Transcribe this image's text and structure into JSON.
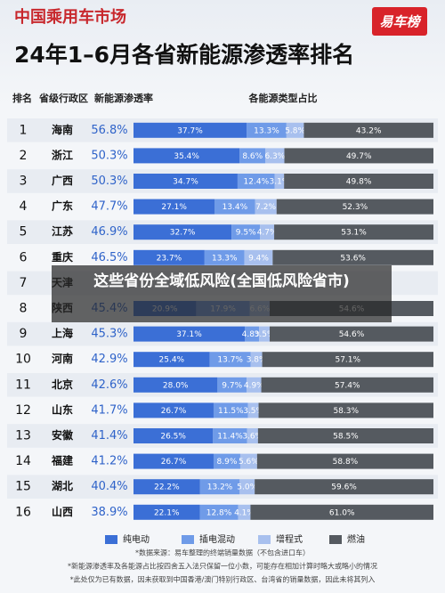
{
  "header": {
    "title": "中国乘用车市场",
    "logo": "易车榜",
    "headline": "24年1–6月各省新能源渗透率排名"
  },
  "overlay_caption": "这些省份全域低风险(全国低风险省市)",
  "chart_data": {
    "type": "bar",
    "stacked": true,
    "orientation": "horizontal",
    "column_headers": [
      "排名",
      "省级行政区",
      "新能源渗透率",
      "各能源类型占比"
    ],
    "ranks": [
      1,
      2,
      3,
      4,
      5,
      6,
      7,
      8,
      9,
      10,
      11,
      12,
      13,
      14,
      15,
      16
    ],
    "categories": [
      "海南",
      "浙江",
      "广西",
      "广东",
      "江苏",
      "重庆",
      "天津",
      "陕西",
      "上海",
      "河南",
      "北京",
      "山东",
      "安徽",
      "福建",
      "湖北",
      "山西"
    ],
    "penetration": [
      56.8,
      50.3,
      50.3,
      47.7,
      46.9,
      46.5,
      null,
      45.4,
      45.3,
      42.9,
      42.6,
      41.7,
      41.4,
      41.2,
      40.4,
      38.9
    ],
    "penetration_labels": [
      "56.8%",
      "50.3%",
      "50.3%",
      "47.7%",
      "46.9%",
      "46.5%",
      null,
      "45.4%",
      "45.3%",
      "42.9%",
      "42.6%",
      "41.7%",
      "41.4%",
      "41.2%",
      "40.4%",
      "38.9%"
    ],
    "xlim": [
      0,
      100
    ],
    "series": [
      {
        "name": "纯电动",
        "color": "#3b6fd6",
        "values": [
          37.7,
          35.4,
          34.7,
          27.1,
          32.7,
          23.7,
          null,
          20.9,
          37.1,
          25.4,
          28.0,
          26.7,
          26.5,
          26.7,
          22.2,
          22.1
        ],
        "value_labels": [
          "37.7%",
          "35.4%",
          "34.7%",
          "27.1%",
          "32.7%",
          "23.7%",
          null,
          "20.9%",
          "37.1%",
          "25.4%",
          "28.0%",
          "26.7%",
          "26.5%",
          "26.7%",
          "22.2%",
          "22.1%"
        ]
      },
      {
        "name": "插电混动",
        "color": "#6f9be8",
        "values": [
          13.3,
          8.6,
          12.4,
          13.4,
          9.5,
          13.3,
          null,
          17.9,
          4.8,
          13.7,
          9.7,
          11.5,
          11.4,
          8.9,
          13.2,
          12.8
        ],
        "value_labels": [
          "13.3%",
          "8.6%",
          "12.4%",
          "13.4%",
          "9.5%",
          "13.3%",
          null,
          "17.9%",
          "4.8%",
          "13.7%",
          "9.7%",
          "11.5%",
          "11.4%",
          "8.9%",
          "13.2%",
          "12.8%"
        ]
      },
      {
        "name": "增程式",
        "color": "#a8c0ee",
        "values": [
          5.8,
          6.3,
          3.1,
          7.2,
          4.7,
          9.4,
          null,
          6.6,
          3.5,
          3.8,
          4.9,
          3.5,
          3.6,
          5.6,
          5.0,
          4.1
        ],
        "value_labels": [
          "5.8%",
          "6.3%",
          "3.1%",
          "7.2%",
          "4.7%",
          "9.4%",
          null,
          "6.6%",
          "3.5%",
          "3.8%",
          "4.9%",
          "3.5%",
          "3.6%",
          "5.6%",
          "5.0%",
          "4.1%"
        ]
      },
      {
        "name": "燃油",
        "color": "#555a60",
        "values": [
          43.2,
          49.7,
          49.8,
          52.3,
          53.1,
          53.6,
          null,
          54.6,
          54.6,
          57.1,
          57.4,
          58.3,
          58.5,
          58.8,
          59.6,
          61.0
        ],
        "value_labels": [
          "43.2%",
          "49.7%",
          "49.8%",
          "52.3%",
          "53.1%",
          "53.6%",
          null,
          "54.6%",
          "54.6%",
          "57.1%",
          "57.4%",
          "58.3%",
          "58.5%",
          "58.8%",
          "59.6%",
          "61.0%"
        ]
      }
    ]
  },
  "footnotes": [
    "*数据来源：易车整理的终端销量数据（不包含进口车）",
    "*新能源渗透率及各能源占比按四舍五入法只保留一位小数，可能存在相加计算时略大或略小的情况",
    "*此处仅为已有数据，因未获取到中国香港/澳门特别行政区、台湾省的销量数据，因此未将其列入"
  ]
}
